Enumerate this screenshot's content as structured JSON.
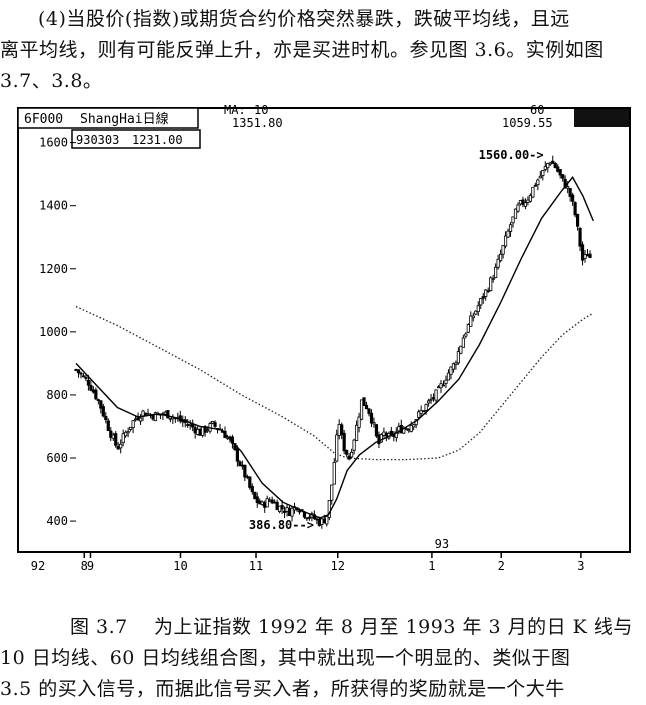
{
  "text_top": {
    "line1": "(4)当股价(指数)或期货合约价格突然暴跌，跌破平均线，且远",
    "line2": "离平均线，则有可能反弹上升，亦是买进时机。参见图 3.6。实例如图",
    "line3": "3.7、3.8。"
  },
  "caption": {
    "line1_label": "图 3.7",
    "line1_text": "为上证指数 1992 年 8 月至 1993 年 3 月的日 K 线与",
    "line2": "10 日均线、60 日均线组合图，其中就出现一个明显的、类似于图",
    "line3": "3.5 的买入信号，而据此信号买入者，所获得的奖励就是一个大牛"
  },
  "chart_data": {
    "type": "candlestick",
    "header": {
      "code": "6F000",
      "name": "ShangHai日線",
      "ma_label": "MA:",
      "ma10_period": "10",
      "ma10_value": "1351.80",
      "ma60_period": "60",
      "ma60_value": "1059.55",
      "selected_date": "930303",
      "selected_value": "1231.00"
    },
    "y_ticks": [
      400,
      600,
      800,
      1000,
      1200,
      1400,
      1600
    ],
    "ylim": [
      340,
      1640
    ],
    "x_ticks": [
      {
        "label": "8",
        "pos": 8
      },
      {
        "label": "9",
        "pos": 14
      },
      {
        "label": "10",
        "pos": 101
      },
      {
        "label": "11",
        "pos": 174
      },
      {
        "label": "12",
        "pos": 253
      },
      {
        "label": "1",
        "pos": 344
      },
      {
        "label": "2",
        "pos": 411
      },
      {
        "label": "3",
        "pos": 488
      }
    ],
    "x_range": [
      0,
      520
    ],
    "year_prefix": "92",
    "year_mark": "93",
    "annotations": [
      {
        "text": "386.80-->",
        "x": 230,
        "y": 386.8
      },
      {
        "text": "1560.00->",
        "x": 452,
        "y": 1560
      }
    ],
    "close_path": [
      [
        0,
        880
      ],
      [
        12,
        840
      ],
      [
        22,
        780
      ],
      [
        32,
        690
      ],
      [
        40,
        630
      ],
      [
        48,
        680
      ],
      [
        56,
        720
      ],
      [
        64,
        745
      ],
      [
        75,
        735
      ],
      [
        88,
        740
      ],
      [
        100,
        720
      ],
      [
        112,
        700
      ],
      [
        120,
        680
      ],
      [
        132,
        705
      ],
      [
        140,
        690
      ],
      [
        148,
        660
      ],
      [
        156,
        600
      ],
      [
        164,
        540
      ],
      [
        172,
        470
      ],
      [
        180,
        450
      ],
      [
        188,
        470
      ],
      [
        196,
        445
      ],
      [
        206,
        430
      ],
      [
        214,
        450
      ],
      [
        222,
        420
      ],
      [
        230,
        410
      ],
      [
        236,
        395
      ],
      [
        242,
        410
      ],
      [
        246,
        480
      ],
      [
        250,
        600
      ],
      [
        254,
        720
      ],
      [
        258,
        640
      ],
      [
        264,
        600
      ],
      [
        270,
        680
      ],
      [
        276,
        780
      ],
      [
        282,
        760
      ],
      [
        288,
        700
      ],
      [
        292,
        640
      ],
      [
        298,
        680
      ],
      [
        304,
        660
      ],
      [
        312,
        690
      ],
      [
        322,
        700
      ],
      [
        332,
        740
      ],
      [
        342,
        780
      ],
      [
        350,
        810
      ],
      [
        358,
        860
      ],
      [
        366,
        900
      ],
      [
        374,
        980
      ],
      [
        382,
        1040
      ],
      [
        390,
        1090
      ],
      [
        398,
        1140
      ],
      [
        406,
        1200
      ],
      [
        414,
        1280
      ],
      [
        420,
        1340
      ],
      [
        428,
        1400
      ],
      [
        436,
        1420
      ],
      [
        444,
        1470
      ],
      [
        452,
        1510
      ],
      [
        458,
        1545
      ],
      [
        464,
        1520
      ],
      [
        470,
        1480
      ],
      [
        476,
        1450
      ],
      [
        482,
        1380
      ],
      [
        486,
        1300
      ],
      [
        490,
        1220
      ],
      [
        494,
        1250
      ],
      [
        498,
        1231
      ]
    ],
    "ma10_path": [
      [
        0,
        900
      ],
      [
        20,
        830
      ],
      [
        40,
        760
      ],
      [
        60,
        730
      ],
      [
        80,
        740
      ],
      [
        100,
        725
      ],
      [
        120,
        700
      ],
      [
        140,
        690
      ],
      [
        160,
        620
      ],
      [
        180,
        520
      ],
      [
        200,
        460
      ],
      [
        220,
        430
      ],
      [
        236,
        410
      ],
      [
        244,
        420
      ],
      [
        252,
        470
      ],
      [
        262,
        560
      ],
      [
        274,
        610
      ],
      [
        290,
        650
      ],
      [
        310,
        680
      ],
      [
        330,
        720
      ],
      [
        350,
        780
      ],
      [
        370,
        850
      ],
      [
        390,
        960
      ],
      [
        410,
        1090
      ],
      [
        430,
        1230
      ],
      [
        450,
        1360
      ],
      [
        470,
        1450
      ],
      [
        480,
        1490
      ],
      [
        490,
        1430
      ],
      [
        500,
        1351.8
      ]
    ],
    "ma60_path": [
      [
        0,
        1080
      ],
      [
        40,
        1020
      ],
      [
        80,
        950
      ],
      [
        120,
        880
      ],
      [
        160,
        800
      ],
      [
        200,
        730
      ],
      [
        230,
        670
      ],
      [
        250,
        615
      ],
      [
        262,
        600
      ],
      [
        290,
        595
      ],
      [
        320,
        595
      ],
      [
        350,
        600
      ],
      [
        370,
        625
      ],
      [
        390,
        680
      ],
      [
        410,
        760
      ],
      [
        430,
        840
      ],
      [
        450,
        920
      ],
      [
        470,
        990
      ],
      [
        490,
        1040
      ],
      [
        500,
        1059.55
      ]
    ]
  }
}
